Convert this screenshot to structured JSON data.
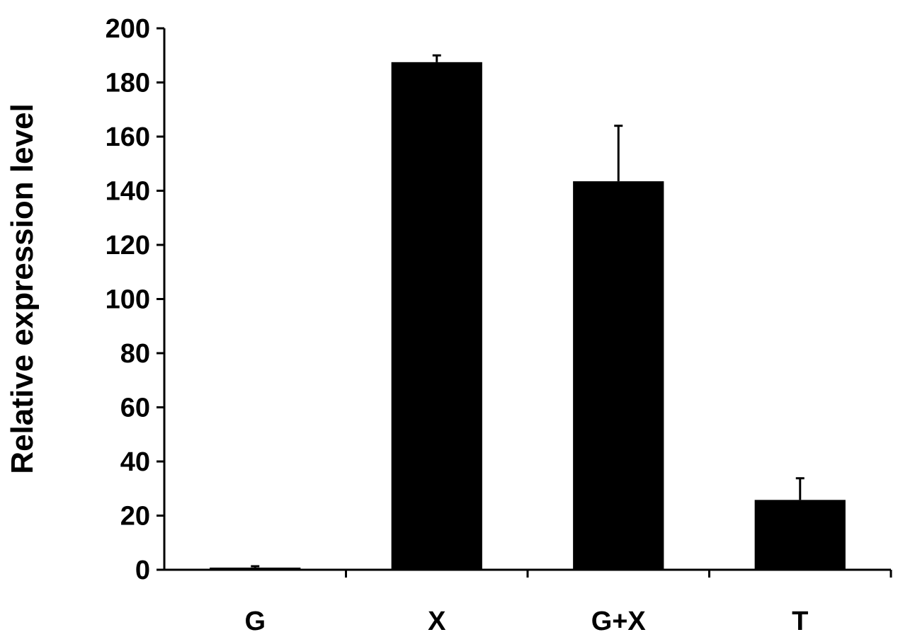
{
  "chart_data": {
    "type": "bar",
    "title": "",
    "xlabel": "",
    "ylabel": "Relative expression level",
    "categories": [
      "G",
      "X",
      "G+X",
      "T"
    ],
    "values": [
      0.8,
      187.5,
      143.5,
      25.8
    ],
    "errors": [
      0.5,
      2.5,
      20.5,
      8.0
    ],
    "ylim": [
      0,
      200
    ],
    "yticks": [
      0,
      20,
      40,
      60,
      80,
      100,
      120,
      140,
      160,
      180,
      200
    ],
    "ytick_labels": [
      "0",
      "20",
      "40",
      "60",
      "80",
      "100",
      "120",
      "140",
      "160",
      "180",
      "200"
    ],
    "bar_color": "#000000",
    "grid": false,
    "legend": "none"
  }
}
